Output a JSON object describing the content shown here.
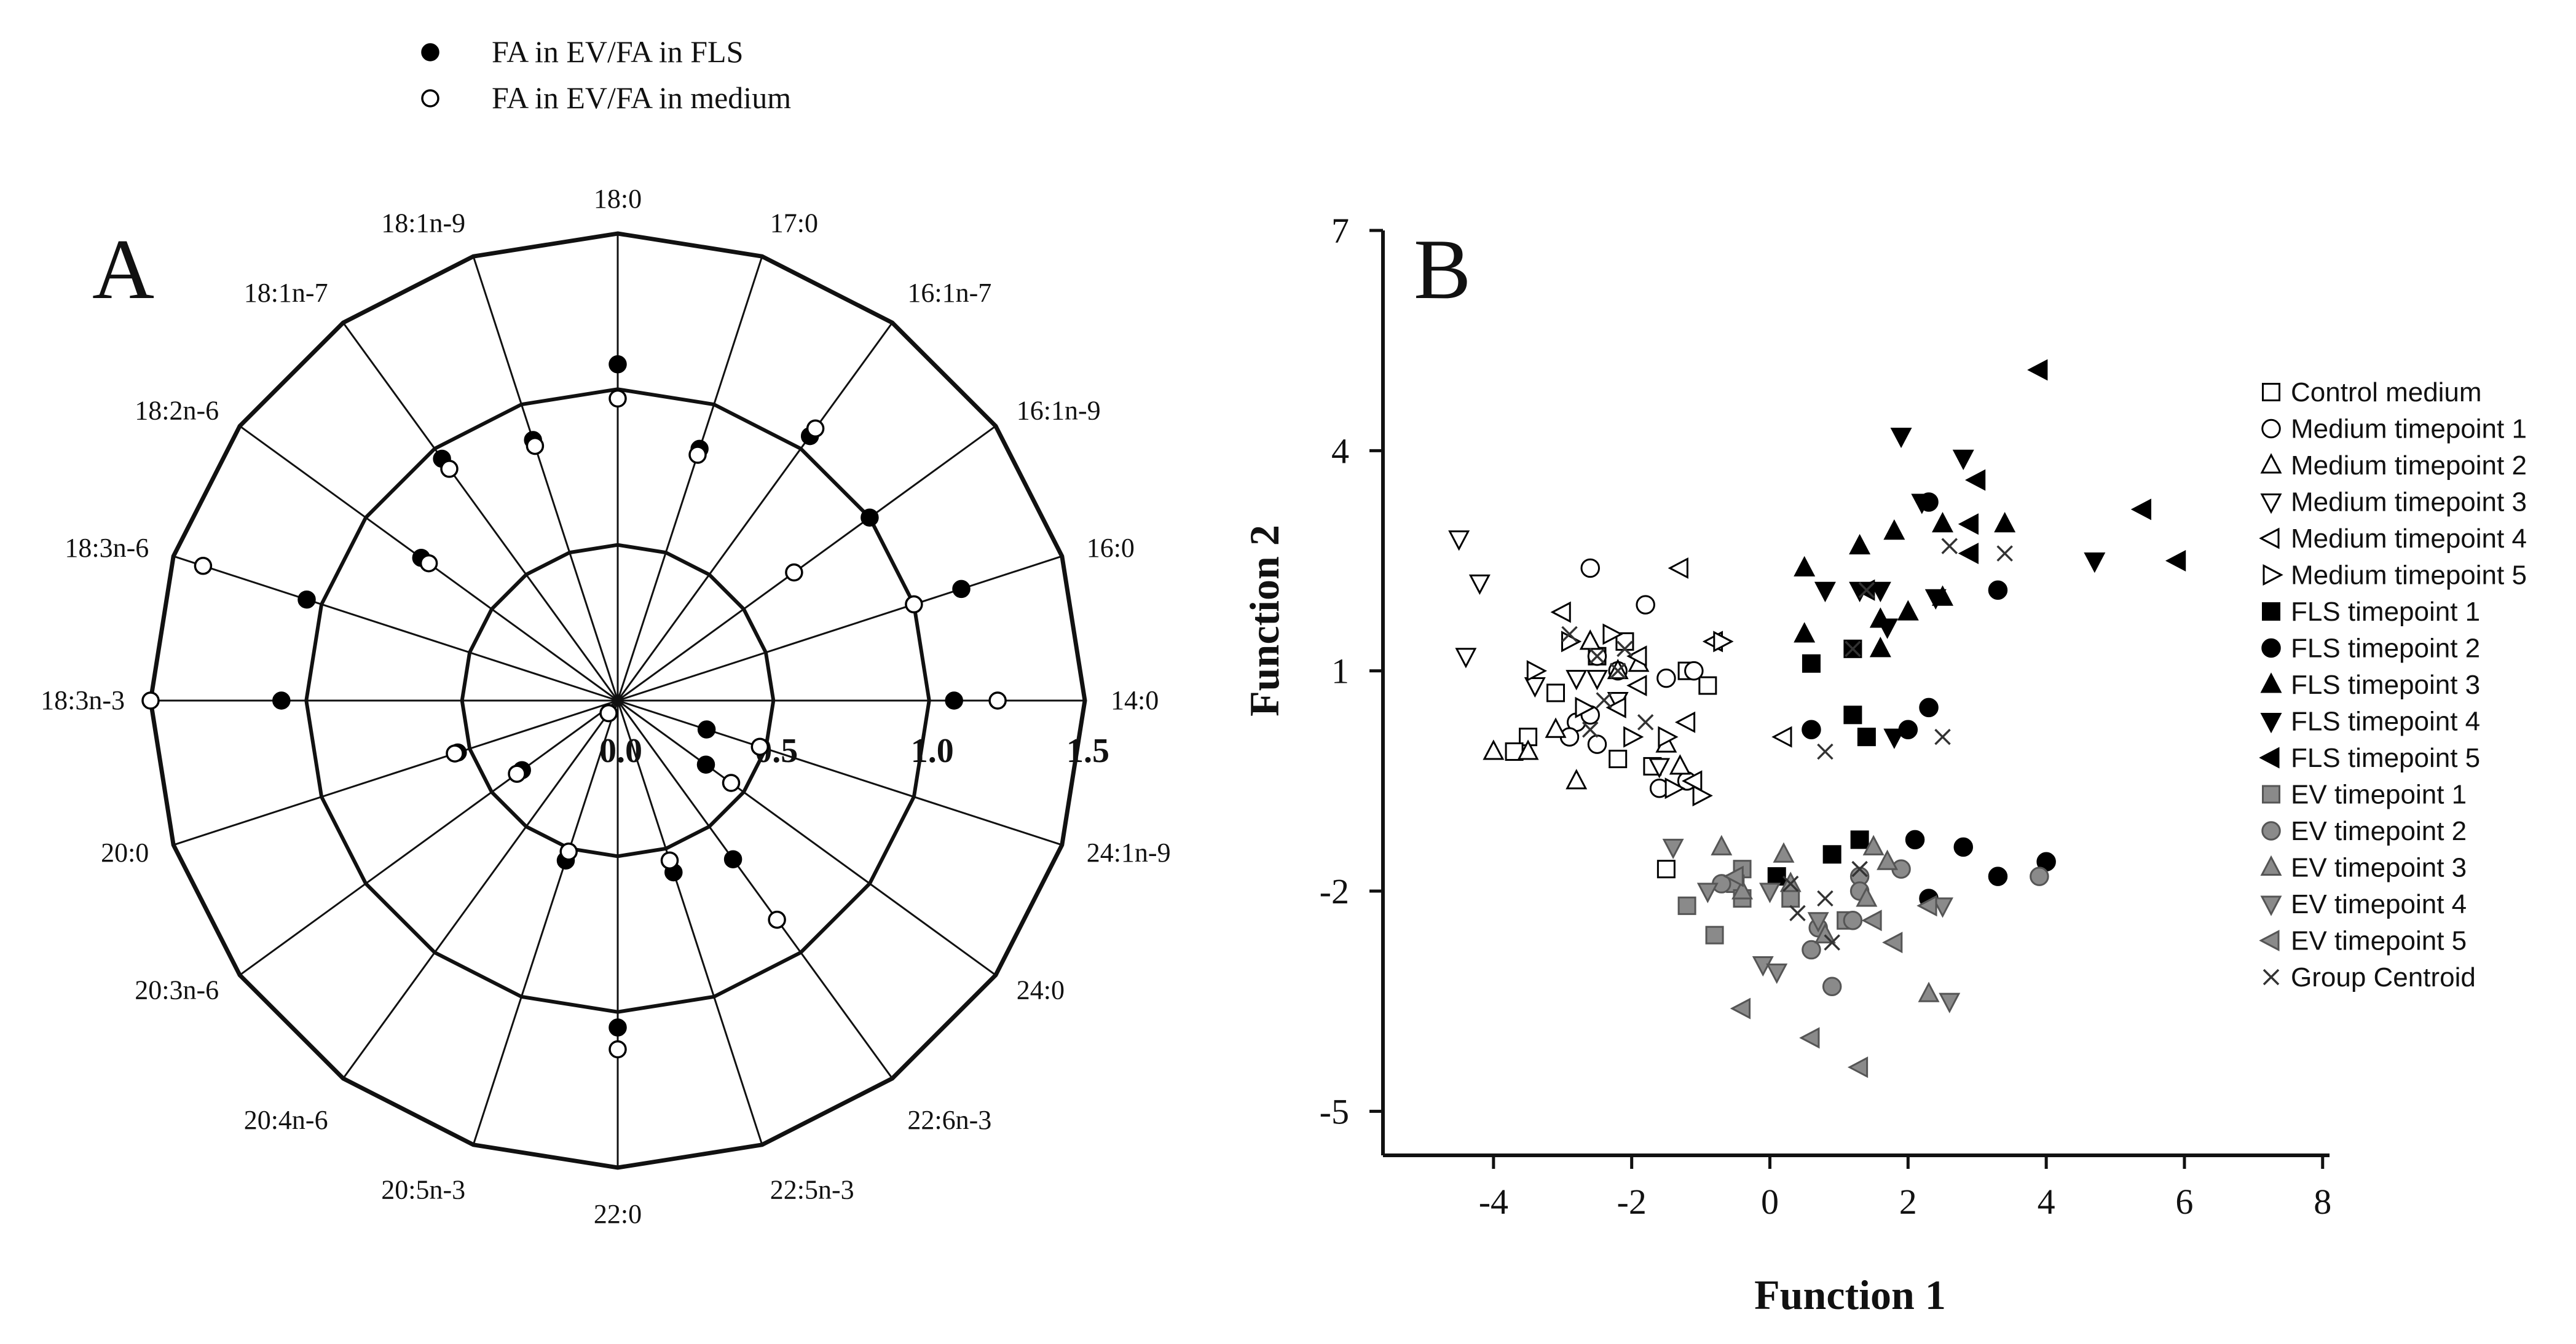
{
  "chart_data": [
    {
      "type": "radar",
      "panel_label": "A",
      "legend": [
        {
          "name": "FA in EV/FA in FLS",
          "marker": "filled-circle"
        },
        {
          "name": "FA in EV/FA in medium",
          "marker": "open-circle"
        }
      ],
      "axes": [
        "18:0",
        "17:0",
        "16:1n-7",
        "16:1n-9",
        "16:0",
        "14:0",
        "24:1n-9",
        "24:0",
        "22:6n-3",
        "22:5n-3",
        "22:0",
        "20:5n-3",
        "20:4n-6",
        "20:3n-6",
        "20:0",
        "18:3n-3",
        "18:3n-6",
        "18:2n-6",
        "18:1n-7",
        "18:1n-9"
      ],
      "scale": {
        "min": 0,
        "max": 1.5,
        "rings": [
          0.5,
          1.0,
          1.5
        ]
      },
      "scale_labels": [
        "0.0",
        "0.5",
        "1.0",
        "1.5"
      ],
      "series": [
        {
          "name": "FA in EV/FA in FLS",
          "values": [
            1.08,
            0.85,
            1.05,
            1.0,
            1.16,
            1.08,
            0.3,
            0.35,
            0.63,
            0.58,
            1.05,
            0.54,
            0.05,
            0.38,
            0.54,
            1.08,
            1.05,
            0.78,
            0.96,
            0.88
          ]
        },
        {
          "name": "FA in EV/FA in medium",
          "values": [
            0.97,
            0.83,
            1.08,
            0.7,
            1.0,
            1.22,
            0.48,
            0.45,
            0.87,
            0.54,
            1.12,
            0.51,
            0.05,
            0.4,
            0.55,
            1.5,
            1.4,
            0.75,
            0.92,
            0.86
          ]
        }
      ]
    },
    {
      "type": "scatter",
      "panel_label": "B",
      "xlabel": "Function 1",
      "ylabel": "Function 2",
      "xlim": [
        -5.6,
        8.1
      ],
      "ylim": [
        -5.6,
        7
      ],
      "xticks": [
        -4,
        -2,
        0,
        2,
        4,
        6,
        8
      ],
      "yticks": [
        -5,
        -2,
        1,
        4,
        7
      ],
      "xtick_labels": [
        "-4",
        "-2",
        "0",
        "2",
        "4",
        "6",
        "8"
      ],
      "ytick_labels": [
        "-5",
        "-2",
        "1",
        "4",
        "7"
      ],
      "series": [
        {
          "name": "Control medium",
          "marker": "square",
          "fill": "open",
          "points": [
            [
              -3.5,
              0.1
            ],
            [
              -3.1,
              0.7
            ],
            [
              -3.7,
              -0.1
            ],
            [
              -2.5,
              1.2
            ],
            [
              -2.1,
              1.4
            ],
            [
              -1.7,
              -0.3
            ],
            [
              -0.9,
              0.8
            ],
            [
              -1.2,
              1.0
            ],
            [
              -1.5,
              -1.7
            ],
            [
              -2.2,
              -0.2
            ]
          ]
        },
        {
          "name": "Medium timepoint 1",
          "marker": "circle",
          "fill": "open",
          "points": [
            [
              -2.8,
              0.3
            ],
            [
              -2.5,
              1.2
            ],
            [
              -2.6,
              2.4
            ],
            [
              -2.2,
              1.0
            ],
            [
              -1.8,
              1.9
            ],
            [
              -1.5,
              0.9
            ],
            [
              -1.1,
              1.0
            ],
            [
              -2.9,
              0.1
            ],
            [
              -2.5,
              0.0
            ],
            [
              -1.6,
              -0.6
            ],
            [
              -1.2,
              -0.5
            ],
            [
              -2.6,
              0.4
            ]
          ]
        },
        {
          "name": "Medium timepoint 2",
          "marker": "triangle-up",
          "fill": "open",
          "points": [
            [
              -4.0,
              -0.1
            ],
            [
              -3.1,
              0.2
            ],
            [
              -2.6,
              1.4
            ],
            [
              -2.2,
              1.0
            ],
            [
              -1.9,
              1.1
            ],
            [
              -3.5,
              -0.1
            ],
            [
              -2.8,
              -0.5
            ],
            [
              -1.5,
              0.0
            ],
            [
              -1.3,
              -0.3
            ]
          ]
        },
        {
          "name": "Medium timepoint 3",
          "marker": "triangle-down",
          "fill": "open",
          "points": [
            [
              -4.5,
              2.8
            ],
            [
              -4.2,
              2.2
            ],
            [
              -4.4,
              1.2
            ],
            [
              -3.4,
              0.8
            ],
            [
              -2.5,
              0.9
            ],
            [
              -2.2,
              0.6
            ],
            [
              -2.8,
              0.9
            ],
            [
              -1.6,
              -0.3
            ]
          ]
        },
        {
          "name": "Medium timepoint 4",
          "marker": "triangle-left",
          "fill": "open",
          "points": [
            [
              -3.0,
              1.8
            ],
            [
              -1.9,
              1.2
            ],
            [
              -1.3,
              2.4
            ],
            [
              -1.2,
              0.3
            ],
            [
              -0.8,
              1.4
            ],
            [
              -2.2,
              0.5
            ],
            [
              -1.9,
              0.8
            ],
            [
              -1.1,
              -0.5
            ],
            [
              0.2,
              0.1
            ]
          ]
        },
        {
          "name": "Medium timepoint 5",
          "marker": "triangle-right",
          "fill": "open",
          "points": [
            [
              -3.4,
              1.0
            ],
            [
              -2.9,
              1.4
            ],
            [
              -2.3,
              1.5
            ],
            [
              -1.5,
              0.1
            ],
            [
              -0.7,
              1.4
            ],
            [
              -2.7,
              0.5
            ],
            [
              -2.0,
              0.1
            ],
            [
              -1.4,
              -0.6
            ],
            [
              -1.0,
              -0.7
            ]
          ]
        },
        {
          "name": "FLS timepoint 1",
          "marker": "square",
          "fill": "black",
          "points": [
            [
              0.6,
              1.1
            ],
            [
              1.2,
              1.3
            ],
            [
              1.2,
              0.4
            ],
            [
              1.4,
              0.1
            ],
            [
              0.9,
              -1.5
            ],
            [
              1.3,
              -1.3
            ],
            [
              0.1,
              -1.8
            ]
          ]
        },
        {
          "name": "FLS timepoint 2",
          "marker": "circle",
          "fill": "black",
          "points": [
            [
              2.3,
              3.3
            ],
            [
              3.3,
              2.1
            ],
            [
              2.3,
              0.5
            ],
            [
              0.6,
              0.2
            ],
            [
              2.0,
              0.2
            ],
            [
              2.1,
              -1.3
            ],
            [
              2.8,
              -1.4
            ],
            [
              4.0,
              -1.6
            ],
            [
              3.3,
              -1.8
            ],
            [
              2.3,
              -2.1
            ]
          ]
        },
        {
          "name": "FLS timepoint 3",
          "marker": "triangle-up",
          "fill": "black",
          "points": [
            [
              0.5,
              2.4
            ],
            [
              1.3,
              2.7
            ],
            [
              1.8,
              2.9
            ],
            [
              2.5,
              3.0
            ],
            [
              3.4,
              3.0
            ],
            [
              1.6,
              1.7
            ],
            [
              0.5,
              1.5
            ],
            [
              1.6,
              1.3
            ],
            [
              2.0,
              1.8
            ],
            [
              2.5,
              2.0
            ]
          ]
        },
        {
          "name": "FLS timepoint 4",
          "marker": "triangle-down",
          "fill": "black",
          "points": [
            [
              1.9,
              4.2
            ],
            [
              2.8,
              3.9
            ],
            [
              2.2,
              3.3
            ],
            [
              0.8,
              2.1
            ],
            [
              1.3,
              2.1
            ],
            [
              1.6,
              2.1
            ],
            [
              2.4,
              2.0
            ],
            [
              1.7,
              1.6
            ],
            [
              4.7,
              2.5
            ],
            [
              1.8,
              0.1
            ]
          ]
        },
        {
          "name": "FLS timepoint 5",
          "marker": "triangle-left",
          "fill": "black",
          "points": [
            [
              3.9,
              5.1
            ],
            [
              5.4,
              3.2
            ],
            [
              5.9,
              2.5
            ],
            [
              3.0,
              3.6
            ],
            [
              2.9,
              3.0
            ],
            [
              2.9,
              2.6
            ],
            [
              1.4,
              2.1
            ]
          ]
        },
        {
          "name": "EV timepoint 1",
          "marker": "square",
          "fill": "gray",
          "points": [
            [
              -0.4,
              -1.7
            ],
            [
              -0.5,
              -1.9
            ],
            [
              -1.2,
              -2.2
            ],
            [
              -0.4,
              -2.1
            ],
            [
              0.3,
              -2.1
            ],
            [
              -0.8,
              -2.6
            ],
            [
              1.1,
              -2.4
            ]
          ]
        },
        {
          "name": "EV timepoint 2",
          "marker": "circle",
          "fill": "gray",
          "points": [
            [
              3.9,
              -1.8
            ],
            [
              1.9,
              -1.7
            ],
            [
              1.3,
              -1.8
            ],
            [
              1.3,
              -2.0
            ],
            [
              0.7,
              -2.5
            ],
            [
              0.6,
              -2.8
            ],
            [
              0.9,
              -3.3
            ],
            [
              -0.7,
              -1.9
            ],
            [
              1.2,
              -2.4
            ]
          ]
        },
        {
          "name": "EV timepoint 3",
          "marker": "triangle-up",
          "fill": "gray",
          "points": [
            [
              -0.7,
              -1.4
            ],
            [
              0.2,
              -1.5
            ],
            [
              1.5,
              -1.4
            ],
            [
              1.7,
              -1.6
            ],
            [
              2.3,
              -3.4
            ],
            [
              -0.4,
              -2.0
            ],
            [
              0.3,
              -1.9
            ],
            [
              1.4,
              -2.1
            ],
            [
              0.8,
              -2.6
            ]
          ]
        },
        {
          "name": "EV timepoint 4",
          "marker": "triangle-down",
          "fill": "gray",
          "points": [
            [
              -1.4,
              -1.4
            ],
            [
              -0.9,
              -2.0
            ],
            [
              0.0,
              -2.0
            ],
            [
              2.6,
              -3.5
            ],
            [
              0.7,
              -2.4
            ],
            [
              -0.1,
              -3.0
            ],
            [
              0.1,
              -3.1
            ],
            [
              2.5,
              -2.2
            ]
          ]
        },
        {
          "name": "EV timepoint 5",
          "marker": "triangle-left",
          "fill": "gray",
          "points": [
            [
              -0.4,
              -3.6
            ],
            [
              0.6,
              -4.0
            ],
            [
              1.3,
              -4.4
            ],
            [
              -0.5,
              -1.8
            ],
            [
              1.5,
              -2.4
            ],
            [
              2.3,
              -2.2
            ],
            [
              1.8,
              -2.7
            ]
          ]
        },
        {
          "name": "Group Centroid",
          "marker": "x",
          "fill": "none",
          "points": [
            [
              -2.5,
              1.2
            ],
            [
              -2.1,
              1.3
            ],
            [
              -2.9,
              1.5
            ],
            [
              -2.2,
              1.0
            ],
            [
              -2.4,
              0.6
            ],
            [
              -1.8,
              0.3
            ],
            [
              -2.6,
              0.2
            ],
            [
              1.2,
              1.3
            ],
            [
              2.5,
              0.1
            ],
            [
              1.4,
              2.1
            ],
            [
              2.6,
              2.7
            ],
            [
              3.4,
              2.6
            ],
            [
              0.8,
              -0.1
            ],
            [
              0.9,
              -2.7
            ],
            [
              0.8,
              -2.1
            ],
            [
              0.4,
              -2.3
            ],
            [
              1.3,
              -1.7
            ],
            [
              0.3,
              -1.9
            ]
          ]
        }
      ]
    }
  ]
}
